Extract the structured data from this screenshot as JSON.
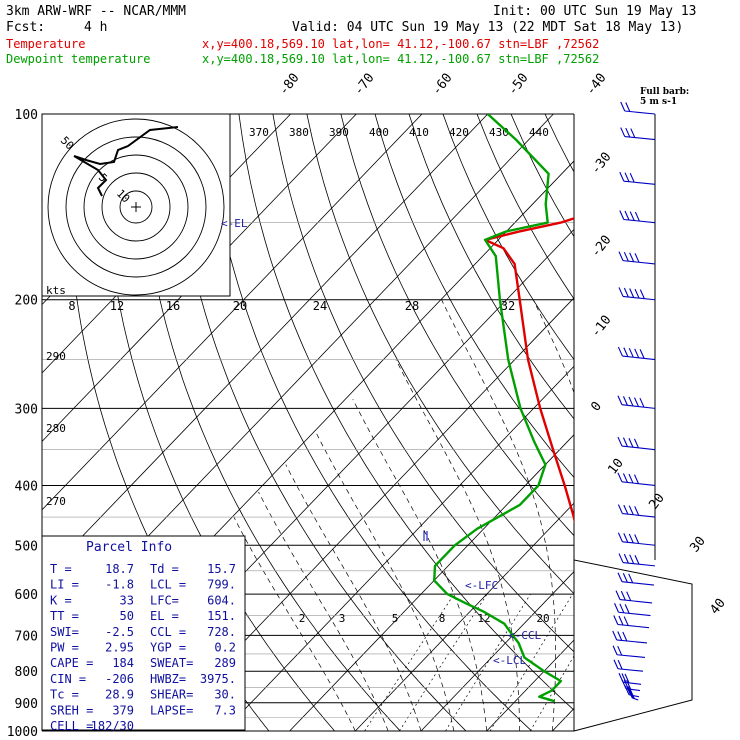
{
  "header": {
    "model": "3km ARW-WRF -- NCAR/MMM",
    "init": "Init: 00 UTC Sun 19 May 13",
    "fcst_label": "Fcst:",
    "fcst_value": "4 h",
    "valid": "Valid: 04 UTC Sun 19 May 13 (22 MDT Sat 18 May 13)"
  },
  "legend": [
    {
      "name": "Temperature",
      "info": "x,y=400.18,569.10   lat,lon= 41.12,-100.67  stn=LBF ,72562",
      "color": "#e00000"
    },
    {
      "name": "Dewpoint temperature",
      "info": "x,y=400.18,569.10   lat,lon= 41.12,-100.67  stn=LBF ,72562",
      "color": "#00a000"
    }
  ],
  "barb_legend": {
    "title": "Full barb:",
    "value": "5 m s-1"
  },
  "hodograph": {
    "units": "kts",
    "ring_labels": [
      "5",
      "10",
      "50"
    ],
    "speed_labels": [
      "8",
      "12",
      "16",
      "20",
      "24",
      "28",
      "32"
    ]
  },
  "parcel_info": {
    "title": "Parcel Info",
    "rows": [
      [
        "T  =",
        "18.7",
        "Td =",
        "15.7"
      ],
      [
        "LI =",
        "-1.8",
        "LCL =",
        "799."
      ],
      [
        "K  =",
        "33",
        "LFC=",
        "604."
      ],
      [
        "TT =",
        "50",
        "EL =",
        "151."
      ],
      [
        "SWI=",
        "-2.5",
        "CCL =",
        "728."
      ],
      [
        "PW =",
        "2.95",
        "YGP =",
        "0.2"
      ],
      [
        "CAPE =",
        "184",
        "SWEAT=",
        "289"
      ],
      [
        "CIN =",
        "-206",
        "HWBZ=",
        "3975."
      ],
      [
        "Tc =",
        "28.9",
        "SHEAR=",
        "30."
      ],
      [
        "SREH =",
        "379",
        "LAPSE=",
        "7.3"
      ],
      [
        "CELL =",
        "182/30",
        "",
        ""
      ]
    ]
  },
  "markers": {
    "el": "<-EL",
    "lfc": "<-LFC",
    "ccl": "<-CCL",
    "lcl": "<-LCL"
  },
  "chart_data": {
    "type": "line",
    "plot": "skew-T log-p",
    "pressure_ticks": [
      100,
      200,
      300,
      400,
      500,
      600,
      700,
      800,
      900,
      1000
    ],
    "isotherm_labels": [
      -80,
      -70,
      -60,
      -50,
      -40,
      -30,
      -20,
      -10,
      0,
      10,
      20,
      30,
      40
    ],
    "theta_labels": [
      370,
      380,
      390,
      400,
      410,
      420,
      430,
      440
    ],
    "theta_side_labels": [
      290,
      280,
      270
    ],
    "mixing_ratio_labels": [
      2,
      3,
      5,
      8,
      12,
      20
    ],
    "ylim": [
      1000,
      100
    ],
    "xlim": [
      -40,
      50
    ],
    "series": [
      {
        "name": "Temperature",
        "color": "#e00000",
        "p": [
          895,
          880,
          860,
          830,
          800,
          760,
          720,
          700,
          650,
          600,
          550,
          500,
          450,
          400,
          350,
          300,
          250,
          200,
          175,
          165,
          160,
          155,
          150,
          140,
          130,
          125,
          110,
          100
        ],
        "t": [
          19,
          20,
          20.5,
          19.5,
          17.5,
          15.5,
          14,
          13,
          9,
          5,
          1,
          -3,
          -8,
          -14,
          -21,
          -29,
          -38,
          -48,
          -54,
          -58,
          -62,
          -58,
          -53,
          -47,
          -40,
          -34,
          -29,
          -29
        ]
      },
      {
        "name": "Dewpoint temperature",
        "color": "#00a000",
        "p": [
          895,
          880,
          860,
          830,
          800,
          760,
          720,
          700,
          670,
          640,
          620,
          600,
          570,
          540,
          500,
          470,
          430,
          400,
          370,
          340,
          300,
          250,
          200,
          170,
          160,
          155,
          150,
          140,
          125,
          110,
          100
        ],
        "t": [
          16,
          13,
          14,
          14,
          10,
          5,
          2,
          0,
          -3,
          -8,
          -12,
          -16,
          -20,
          -22,
          -22,
          -21,
          -18,
          -18,
          -20,
          -25,
          -32,
          -41,
          -51,
          -58,
          -62,
          -60,
          -55,
          -58,
          -62,
          -72,
          -80
        ]
      }
    ],
    "wind_barbs": [
      {
        "p": 895,
        "spd": 25,
        "dir": 170
      },
      {
        "p": 880,
        "spd": 30,
        "dir": 180
      },
      {
        "p": 860,
        "spd": 30,
        "dir": 190
      },
      {
        "p": 840,
        "spd": 25,
        "dir": 200
      },
      {
        "p": 800,
        "spd": 20,
        "dir": 220
      },
      {
        "p": 760,
        "spd": 20,
        "dir": 230
      },
      {
        "p": 720,
        "spd": 25,
        "dir": 240
      },
      {
        "p": 680,
        "spd": 25,
        "dir": 245
      },
      {
        "p": 650,
        "spd": 25,
        "dir": 250
      },
      {
        "p": 620,
        "spd": 30,
        "dir": 250
      },
      {
        "p": 580,
        "spd": 30,
        "dir": 250
      },
      {
        "p": 540,
        "spd": 35,
        "dir": 250
      },
      {
        "p": 500,
        "spd": 35,
        "dir": 255
      },
      {
        "p": 450,
        "spd": 35,
        "dir": 255
      },
      {
        "p": 400,
        "spd": 40,
        "dir": 260
      },
      {
        "p": 350,
        "spd": 40,
        "dir": 260
      },
      {
        "p": 300,
        "spd": 45,
        "dir": 260
      },
      {
        "p": 250,
        "spd": 45,
        "dir": 255
      },
      {
        "p": 200,
        "spd": 45,
        "dir": 250
      },
      {
        "p": 175,
        "spd": 40,
        "dir": 250
      },
      {
        "p": 150,
        "spd": 35,
        "dir": 245
      },
      {
        "p": 130,
        "spd": 30,
        "dir": 245
      },
      {
        "p": 110,
        "spd": 25,
        "dir": 240
      },
      {
        "p": 100,
        "spd": 20,
        "dir": 240
      }
    ],
    "hodograph_path": [
      [
        0,
        0
      ],
      [
        -4,
        22
      ],
      [
        -10,
        28
      ],
      [
        -15,
        38
      ],
      [
        -28,
        40
      ],
      [
        -35,
        44
      ],
      [
        -42,
        44
      ],
      [
        -47,
        46
      ],
      [
        -30,
        48
      ],
      [
        -20,
        52
      ],
      [
        -8,
        56
      ],
      [
        2,
        52
      ],
      [
        10,
        58
      ],
      [
        18,
        60
      ]
    ]
  }
}
